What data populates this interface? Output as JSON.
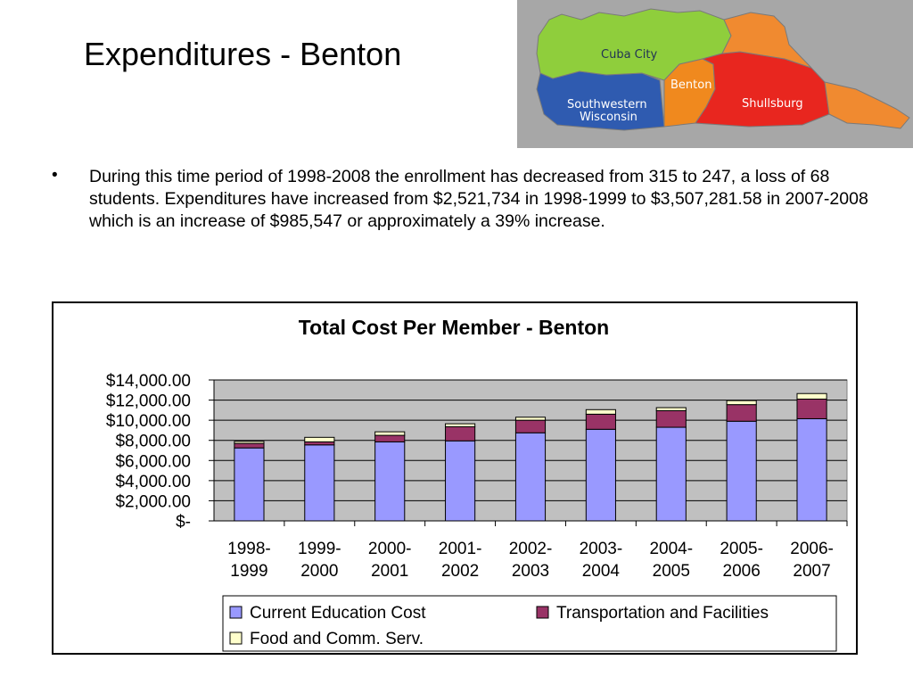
{
  "slide": {
    "title": "Expenditures - Benton",
    "bullet_marker": "•",
    "bullet_text": "During this time period of 1998-2008 the enrollment has decreased from 315 to 247, a loss of 68 students.  Expenditures have increased from $2,521,734 in 1998-1999 to $3,507,281.58 in 2007-2008 which is an increase of $985,547 or approximately a 39% increase."
  },
  "map": {
    "labels": [
      "Cuba City",
      "Benton",
      "Shullsburg",
      "Southwestern Wisconsin"
    ],
    "colors": {
      "background": "#a7a7a7",
      "cuba_city": "#8fce3c",
      "southwestern": "#2f5bb0",
      "benton": "#f0891e",
      "shullsburg": "#e8261f",
      "east": "#f08a30"
    }
  },
  "chart_data": {
    "type": "bar",
    "stacked": true,
    "title": "Total Cost Per Member - Benton",
    "xlabel": "",
    "ylabel": "",
    "ylim": [
      0,
      14000
    ],
    "y_ticks": [
      "$14,000.00",
      "$12,000.00",
      "$10,000.00",
      "$8,000.00",
      "$6,000.00",
      "$4,000.00",
      "$2,000.00",
      "$-"
    ],
    "y_tick_values": [
      14000,
      12000,
      10000,
      8000,
      6000,
      4000,
      2000,
      0
    ],
    "categories": [
      [
        "1998-",
        "1999"
      ],
      [
        "1999-",
        "2000"
      ],
      [
        "2000-",
        "2001"
      ],
      [
        "2001-",
        "2002"
      ],
      [
        "2002-",
        "2003"
      ],
      [
        "2003-",
        "2004"
      ],
      [
        "2004-",
        "2005"
      ],
      [
        "2005-",
        "2006"
      ],
      [
        "2006-",
        "2007"
      ]
    ],
    "series": [
      {
        "name": "Current Education Cost",
        "color": "#9999ff",
        "values": [
          7250,
          7550,
          7850,
          7950,
          8750,
          9100,
          9300,
          9900,
          10150
        ]
      },
      {
        "name": "Transportation and Facilities",
        "color": "#993366",
        "values": [
          450,
          300,
          650,
          1400,
          1250,
          1500,
          1650,
          1650,
          1950
        ]
      },
      {
        "name": "Food and Comm. Serv.",
        "color": "#ffffcc",
        "values": [
          200,
          450,
          350,
          300,
          300,
          450,
          300,
          400,
          550
        ]
      }
    ],
    "grid": true,
    "plot_background": "#c0c0c0",
    "legend_position": "bottom"
  }
}
